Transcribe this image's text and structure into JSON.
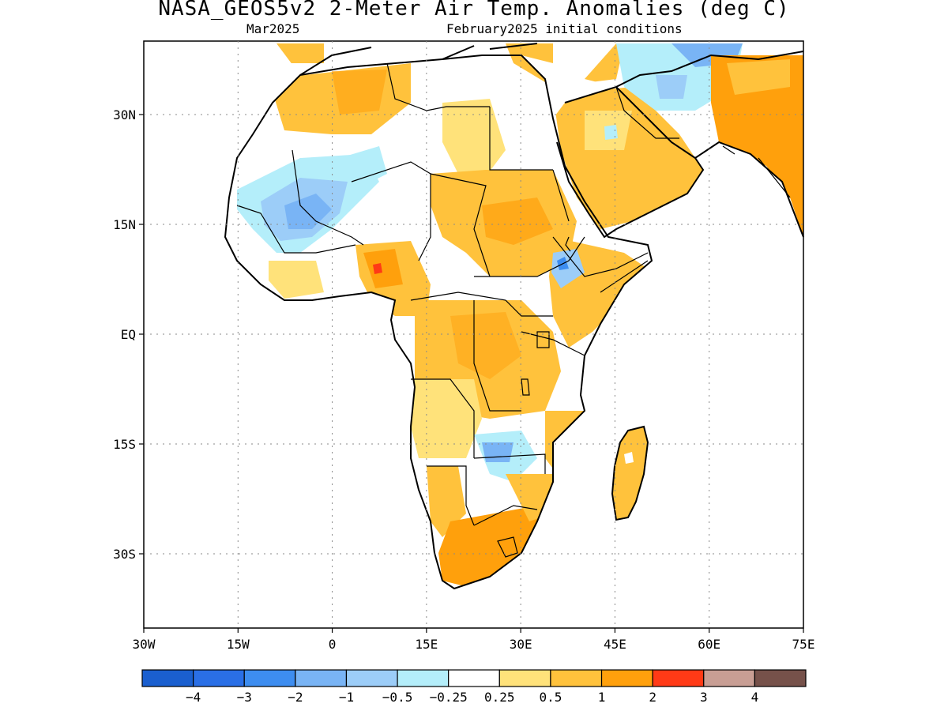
{
  "title": "NASA_GEOS5v2 2-Meter Air Temp. Anomalies (deg C)",
  "subtitle_left": "Mar2025",
  "subtitle_right": "February2025 initial conditions",
  "map": {
    "lon_range": [
      -30,
      75
    ],
    "lat_range": [
      -41,
      40
    ],
    "lat_labels": [
      "30N",
      "15N",
      "EQ",
      "15S",
      "30S"
    ],
    "lon_labels": [
      "30W",
      "15W",
      "0",
      "15E",
      "30E",
      "45E",
      "60E",
      "75E"
    ],
    "grid": "dotted"
  },
  "legend": {
    "colors": [
      "#1a5fcf",
      "#2a6fe6",
      "#3d8df0",
      "#79b4f5",
      "#9ccdf8",
      "#b4eefa",
      "#ffffff",
      "#ffe27a",
      "#ffc23c",
      "#ffa00c",
      "#ff3a16",
      "#c89e94",
      "#76514a"
    ],
    "labels": [
      "−4",
      "−3",
      "−2",
      "−1",
      "−0.5",
      "−0.25",
      "0.25",
      "0.5",
      "1",
      "2",
      "3",
      "4"
    ]
  },
  "anomaly_regions": [
    {
      "name": "north-africa-warm",
      "level": "0.5 to 1",
      "color": "#ffc23c"
    },
    {
      "name": "sahel-cool",
      "level": "-0.5 to -1",
      "color": "#9ccdf8"
    },
    {
      "name": "sudan-warm",
      "level": "0.5 to 2",
      "color": "#ffc23c"
    },
    {
      "name": "southern-africa-warm",
      "level": "1 to 2",
      "color": "#ffa00c"
    },
    {
      "name": "arabia-warm",
      "level": "0.5 to 1",
      "color": "#ffc23c"
    },
    {
      "name": "nigeria-hotspot",
      "level": "2 to 3",
      "color": "#ff3a16"
    }
  ]
}
